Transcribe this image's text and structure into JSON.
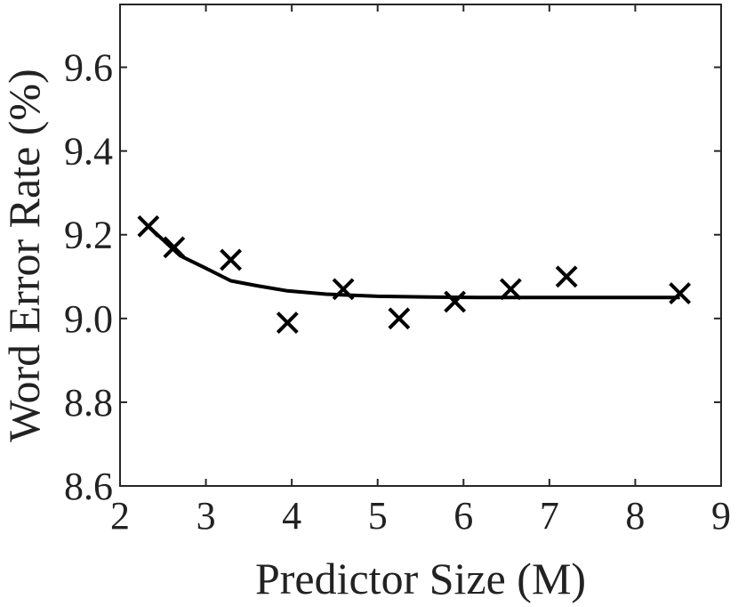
{
  "chart_data": {
    "type": "scatter",
    "xlabel": "Predictor Size (M)",
    "ylabel": "Word Error Rate (%)",
    "xlim": [
      2,
      9
    ],
    "ylim": [
      8.6,
      9.75
    ],
    "xticks": [
      2,
      3,
      4,
      5,
      6,
      7,
      8,
      9
    ],
    "yticks": [
      8.6,
      8.8,
      9.0,
      9.2,
      9.4,
      9.6
    ],
    "ytick_labels": [
      "8.6",
      "8.8",
      "9.0",
      "9.2",
      "9.4",
      "9.6"
    ],
    "grid": false,
    "series": [
      {
        "type": "scatter",
        "marker": "x",
        "color": "#000000",
        "x": [
          2.33,
          2.63,
          3.29,
          3.95,
          4.6,
          5.25,
          5.9,
          6.55,
          7.2,
          8.52
        ],
        "y": [
          9.22,
          9.17,
          9.14,
          8.99,
          9.07,
          9.0,
          9.04,
          9.07,
          9.1,
          9.06
        ]
      },
      {
        "type": "line",
        "color": "#000000",
        "x": [
          2.33,
          2.7,
          3.0,
          3.29,
          3.6,
          3.95,
          4.4,
          5.0,
          5.6,
          6.2,
          7.0,
          8.0,
          8.52
        ],
        "y": [
          9.22,
          9.15,
          9.12,
          9.09,
          9.078,
          9.066,
          9.058,
          9.053,
          9.051,
          9.05,
          9.05,
          9.05,
          9.05
        ]
      }
    ]
  }
}
